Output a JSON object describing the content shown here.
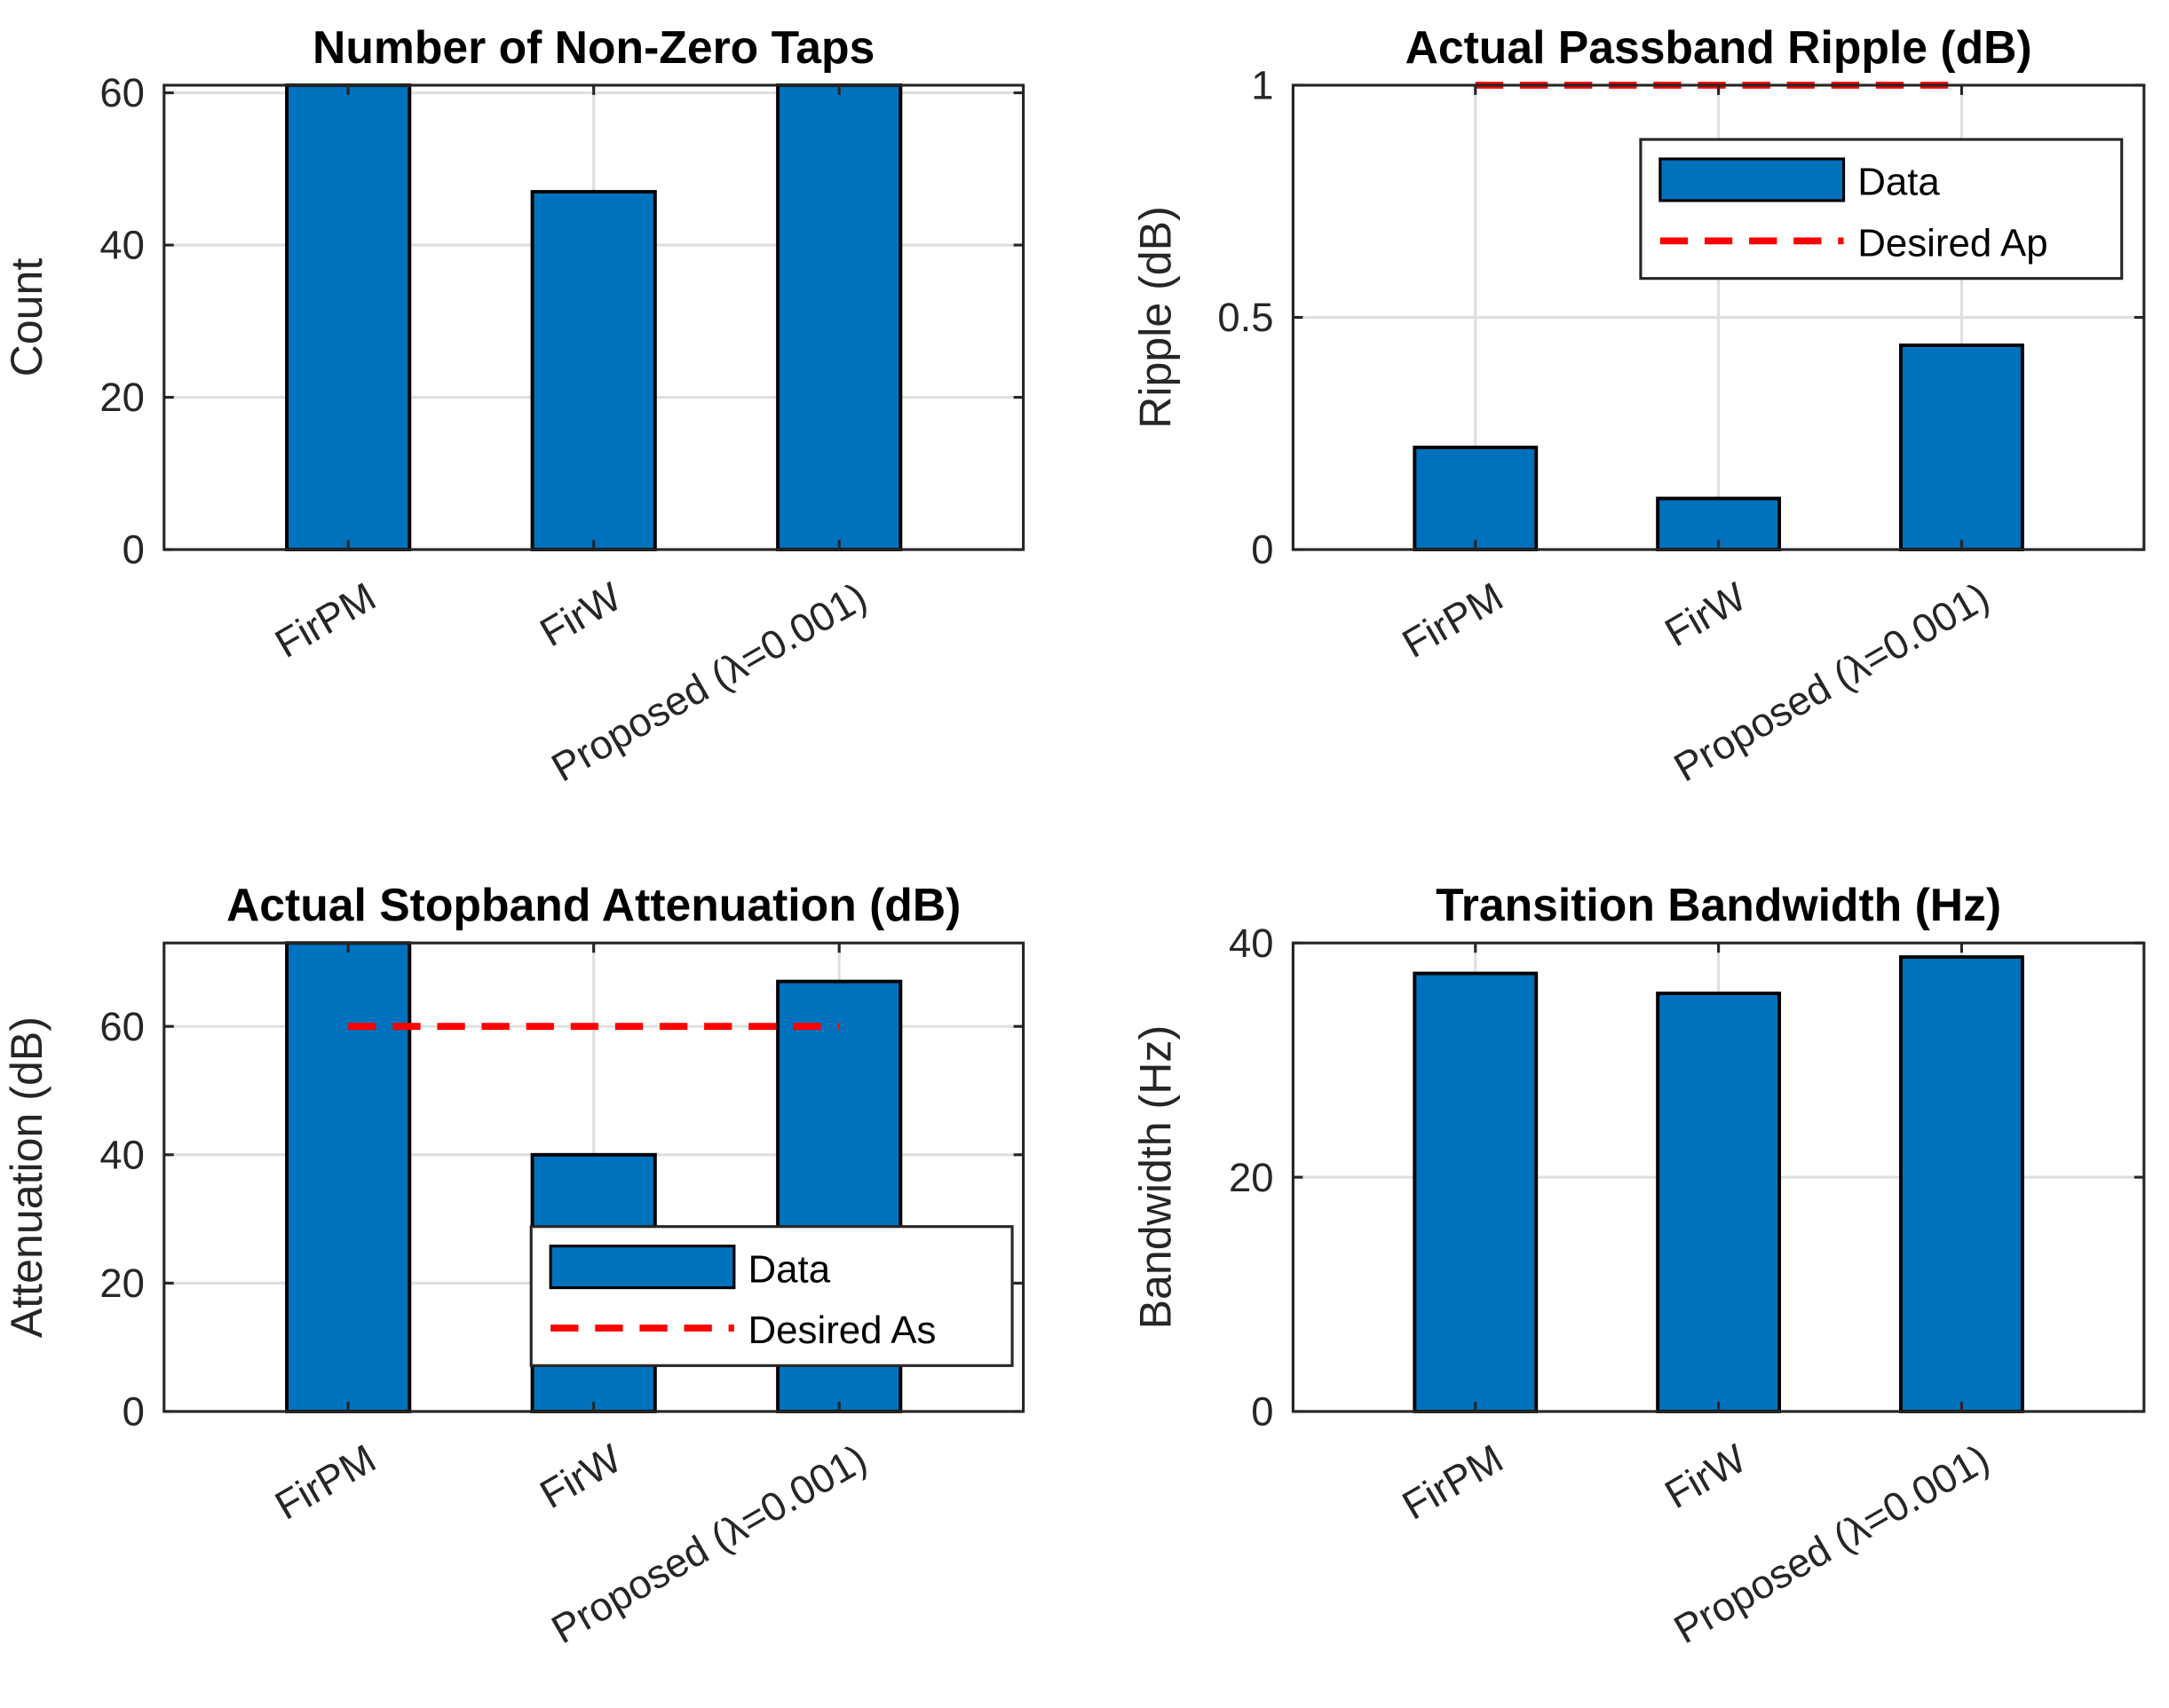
{
  "chart_data": [
    {
      "type": "bar",
      "title": "Number of Non-Zero Taps",
      "ylabel": "Count",
      "xlabel": "",
      "categories": [
        "FirPM",
        "FirW",
        "Proposed (λ=0.001)"
      ],
      "values": [
        61,
        47,
        61
      ],
      "ylim": [
        0,
        61
      ],
      "yticks": [
        0,
        20,
        40,
        60
      ],
      "grid": true,
      "bar_color": "#0072BD"
    },
    {
      "type": "bar",
      "title": "Actual Passband Ripple (dB)",
      "ylabel": "Ripple (dB)",
      "xlabel": "",
      "categories": [
        "FirPM",
        "FirW",
        "Proposed (λ=0.001)"
      ],
      "values": [
        0.22,
        0.11,
        0.44
      ],
      "ylim": [
        0,
        1
      ],
      "yticks": [
        0,
        0.5,
        1
      ],
      "grid": true,
      "bar_color": "#0072BD",
      "reference_line": {
        "name": "Desired Ap",
        "value": 1,
        "color": "#FF0000",
        "style": "dashed"
      },
      "legend": {
        "entries": [
          "Data",
          "Desired Ap"
        ],
        "placement": "top-right"
      }
    },
    {
      "type": "bar",
      "title": "Actual Stopband Attenuation (dB)",
      "ylabel": "Attenuation (dB)",
      "xlabel": "",
      "categories": [
        "FirPM",
        "FirW",
        "Proposed (λ=0.001)"
      ],
      "values": [
        75,
        40,
        67
      ],
      "ylim": [
        0,
        73
      ],
      "yticks": [
        0,
        20,
        40,
        60
      ],
      "grid": true,
      "bar_color": "#0072BD",
      "reference_line": {
        "name": "Desired As",
        "value": 60,
        "color": "#FF0000",
        "style": "dashed"
      },
      "legend": {
        "entries": [
          "Data",
          "Desired As"
        ],
        "placement": "bottom-right"
      }
    },
    {
      "type": "bar",
      "title": "Transition Bandwidth (Hz)",
      "ylabel": "Bandwidth (Hz)",
      "xlabel": "",
      "categories": [
        "FirPM",
        "FirW",
        "Proposed (λ=0.001)"
      ],
      "values": [
        37.4,
        35.7,
        38.8
      ],
      "ylim": [
        0,
        40
      ],
      "yticks": [
        0,
        20,
        40
      ],
      "grid": true,
      "bar_color": "#0072BD"
    }
  ]
}
